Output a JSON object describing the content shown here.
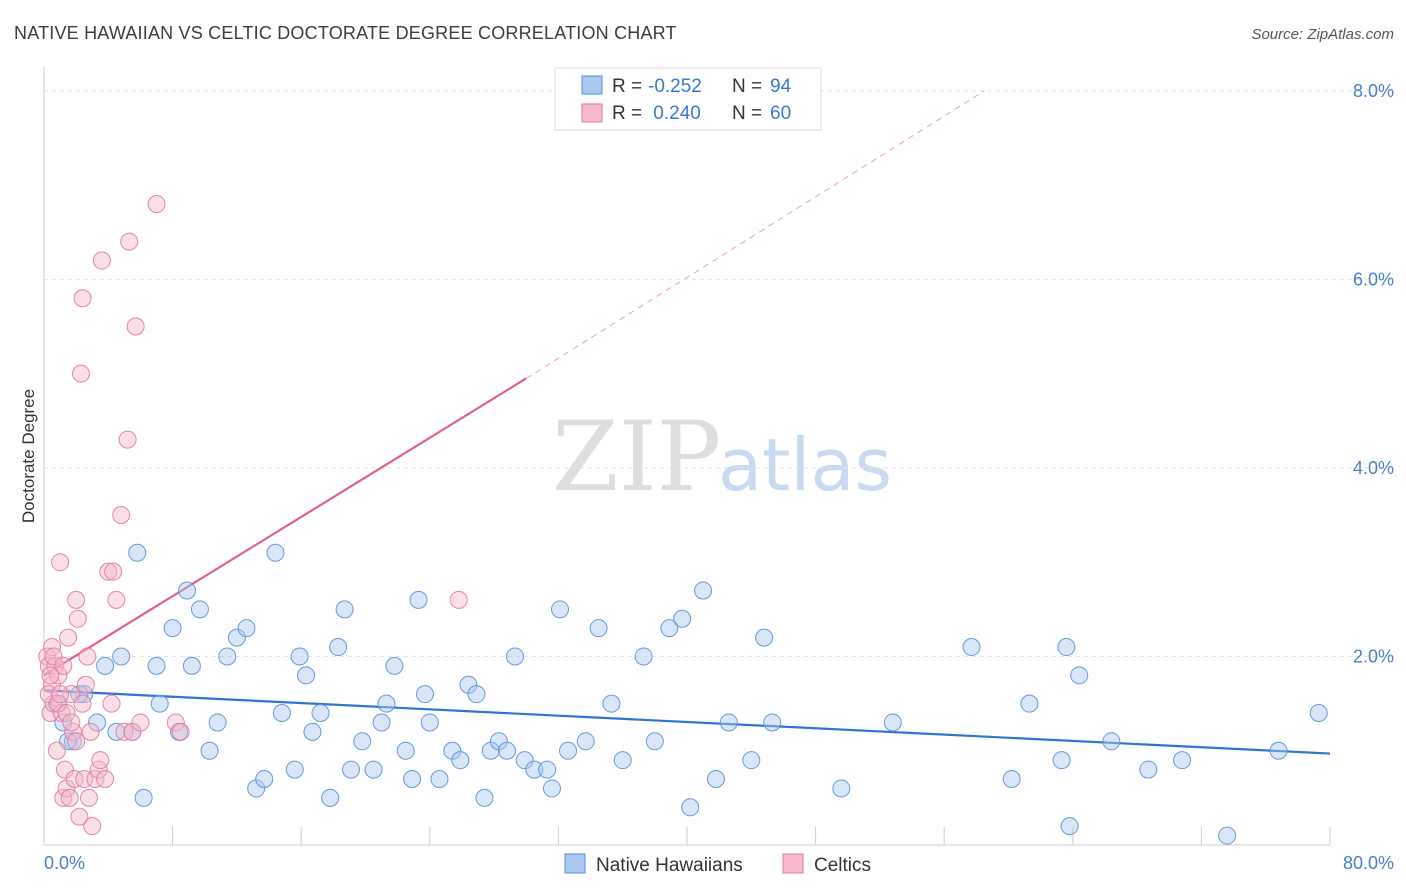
{
  "header": {
    "title": "NATIVE HAWAIIAN VS CELTIC DOCTORATE DEGREE CORRELATION CHART",
    "source": "Source: ZipAtlas.com"
  },
  "watermark": {
    "zip": "ZIP",
    "atlas": "atlas"
  },
  "legend": {
    "rows": [
      {
        "r_label": "R = ",
        "r_value": "-0.252",
        "n_label": "N = ",
        "n_value": "94",
        "color": "#a8c8f0",
        "stroke": "#5a8fd6"
      },
      {
        "r_label": "R = ",
        "r_value": " 0.240",
        "n_label": "N = ",
        "n_value": "60",
        "color": "#f5b8cc",
        "stroke": "#e07aa0"
      }
    ]
  },
  "bottom_legend": {
    "items": [
      {
        "label": "Native Hawaiians",
        "color": "#a8c8f0",
        "stroke": "#5a8fd6"
      },
      {
        "label": "Celtics",
        "color": "#f5b8cc",
        "stroke": "#e07aa0"
      }
    ]
  },
  "chart_data": {
    "type": "scatter",
    "title": "NATIVE HAWAIIAN VS CELTIC DOCTORATE DEGREE CORRELATION CHART",
    "xlabel": "",
    "ylabel": "Doctorate Degree",
    "xlim": [
      0,
      80
    ],
    "ylim": [
      0,
      8.2
    ],
    "x_tick_labels": [
      "0.0%",
      "80.0%"
    ],
    "y_ticks": [
      2,
      4,
      6,
      8
    ],
    "y_tick_labels": [
      "2.0%",
      "4.0%",
      "6.0%",
      "8.0%"
    ],
    "grid": true,
    "series": [
      {
        "name": "Native Hawaiians",
        "color": "#a8c8f0",
        "stroke": "#5a8fd6",
        "trend": {
          "x": [
            0,
            80
          ],
          "y": [
            1.64,
            0.97
          ],
          "color": "#2f74d0"
        },
        "points": [
          [
            0.8,
            1.5
          ],
          [
            1.2,
            1.3
          ],
          [
            1.8,
            1.1
          ],
          [
            2.5,
            1.6
          ],
          [
            3.3,
            1.3
          ],
          [
            3.8,
            1.9
          ],
          [
            4.5,
            1.2
          ],
          [
            4.8,
            2.0
          ],
          [
            5.5,
            1.2
          ],
          [
            5.8,
            3.1
          ],
          [
            6.2,
            0.5
          ],
          [
            7.0,
            1.9
          ],
          [
            7.2,
            1.5
          ],
          [
            8.0,
            2.3
          ],
          [
            8.4,
            1.2
          ],
          [
            8.9,
            2.7
          ],
          [
            9.2,
            1.9
          ],
          [
            9.7,
            2.5
          ],
          [
            10.3,
            1.0
          ],
          [
            10.8,
            1.3
          ],
          [
            11.4,
            2.0
          ],
          [
            12.0,
            2.2
          ],
          [
            12.6,
            2.3
          ],
          [
            13.2,
            0.6
          ],
          [
            13.7,
            0.7
          ],
          [
            14.4,
            3.1
          ],
          [
            14.8,
            1.4
          ],
          [
            15.6,
            0.8
          ],
          [
            15.9,
            2.0
          ],
          [
            16.3,
            1.8
          ],
          [
            16.7,
            1.2
          ],
          [
            17.2,
            1.4
          ],
          [
            17.8,
            0.5
          ],
          [
            18.3,
            2.1
          ],
          [
            18.7,
            2.5
          ],
          [
            19.1,
            0.8
          ],
          [
            19.8,
            1.1
          ],
          [
            20.5,
            0.8
          ],
          [
            21.0,
            1.3
          ],
          [
            21.3,
            1.5
          ],
          [
            21.8,
            1.9
          ],
          [
            22.5,
            1.0
          ],
          [
            22.9,
            0.7
          ],
          [
            23.3,
            2.6
          ],
          [
            23.7,
            1.6
          ],
          [
            24.0,
            1.3
          ],
          [
            24.6,
            0.7
          ],
          [
            25.4,
            1.0
          ],
          [
            25.9,
            0.9
          ],
          [
            26.4,
            1.7
          ],
          [
            26.9,
            1.6
          ],
          [
            27.4,
            0.5
          ],
          [
            27.8,
            1.0
          ],
          [
            28.3,
            1.1
          ],
          [
            28.8,
            1.0
          ],
          [
            29.3,
            2.0
          ],
          [
            29.9,
            0.9
          ],
          [
            30.5,
            0.8
          ],
          [
            31.3,
            0.8
          ],
          [
            31.6,
            0.6
          ],
          [
            32.1,
            2.5
          ],
          [
            32.6,
            1.0
          ],
          [
            33.7,
            1.1
          ],
          [
            34.5,
            2.3
          ],
          [
            35.3,
            1.5
          ],
          [
            36.0,
            0.9
          ],
          [
            37.3,
            2.0
          ],
          [
            38.0,
            1.1
          ],
          [
            38.9,
            2.3
          ],
          [
            39.7,
            2.4
          ],
          [
            40.2,
            0.4
          ],
          [
            41.0,
            2.7
          ],
          [
            41.8,
            0.7
          ],
          [
            42.6,
            1.3
          ],
          [
            44.0,
            0.9
          ],
          [
            44.8,
            2.2
          ],
          [
            45.3,
            1.3
          ],
          [
            49.6,
            0.6
          ],
          [
            52.8,
            1.3
          ],
          [
            57.7,
            2.1
          ],
          [
            60.2,
            0.7
          ],
          [
            61.3,
            1.5
          ],
          [
            63.3,
            0.9
          ],
          [
            63.6,
            2.1
          ],
          [
            63.8,
            0.2
          ],
          [
            64.4,
            1.8
          ],
          [
            66.4,
            1.1
          ],
          [
            68.7,
            0.8
          ],
          [
            70.8,
            0.9
          ],
          [
            73.6,
            0.1
          ],
          [
            76.8,
            1.0
          ],
          [
            79.3,
            1.4
          ],
          [
            1.5,
            1.1
          ],
          [
            2.2,
            1.6
          ]
        ]
      },
      {
        "name": "Celtics",
        "color": "#f5b8cc",
        "stroke": "#e07aa0",
        "trend": {
          "x": [
            0,
            30
          ],
          "y": [
            1.8,
            4.95
          ],
          "color": "#e0618b",
          "dash_extension": {
            "x": [
              30,
              58.5
            ],
            "y": [
              4.95,
              8.0
            ]
          }
        },
        "points": [
          [
            0.2,
            2.0
          ],
          [
            0.3,
            1.9
          ],
          [
            0.4,
            1.4
          ],
          [
            0.5,
            1.7
          ],
          [
            0.5,
            2.1
          ],
          [
            0.6,
            1.5
          ],
          [
            0.7,
            1.9
          ],
          [
            0.8,
            1.0
          ],
          [
            0.9,
            1.8
          ],
          [
            1.0,
            3.0
          ],
          [
            1.1,
            1.4
          ],
          [
            1.2,
            0.5
          ],
          [
            1.3,
            0.8
          ],
          [
            1.4,
            0.6
          ],
          [
            1.5,
            2.2
          ],
          [
            1.6,
            0.5
          ],
          [
            1.7,
            1.6
          ],
          [
            1.8,
            1.2
          ],
          [
            1.9,
            0.7
          ],
          [
            2.0,
            2.6
          ],
          [
            2.1,
            2.4
          ],
          [
            2.2,
            0.3
          ],
          [
            2.3,
            5.0
          ],
          [
            2.4,
            5.8
          ],
          [
            2.5,
            0.7
          ],
          [
            2.6,
            1.7
          ],
          [
            2.7,
            2.0
          ],
          [
            2.8,
            0.5
          ],
          [
            2.9,
            1.2
          ],
          [
            3.0,
            0.2
          ],
          [
            3.2,
            0.7
          ],
          [
            3.4,
            0.8
          ],
          [
            3.5,
            0.9
          ],
          [
            3.6,
            6.2
          ],
          [
            3.8,
            0.7
          ],
          [
            4.0,
            2.9
          ],
          [
            4.2,
            1.5
          ],
          [
            4.3,
            2.9
          ],
          [
            4.5,
            2.6
          ],
          [
            4.8,
            3.5
          ],
          [
            5.0,
            1.2
          ],
          [
            5.2,
            4.3
          ],
          [
            5.3,
            6.4
          ],
          [
            5.5,
            1.2
          ],
          [
            5.7,
            5.5
          ],
          [
            6.0,
            1.3
          ],
          [
            7.0,
            6.8
          ],
          [
            8.2,
            1.3
          ],
          [
            8.5,
            1.2
          ],
          [
            25.8,
            2.6
          ],
          [
            0.3,
            1.6
          ],
          [
            0.6,
            2.0
          ],
          [
            0.9,
            1.5
          ],
          [
            1.2,
            1.9
          ],
          [
            1.4,
            1.4
          ],
          [
            1.7,
            1.3
          ],
          [
            2.0,
            1.1
          ],
          [
            2.4,
            1.5
          ],
          [
            0.4,
            1.8
          ],
          [
            1.0,
            1.6
          ]
        ]
      }
    ]
  }
}
